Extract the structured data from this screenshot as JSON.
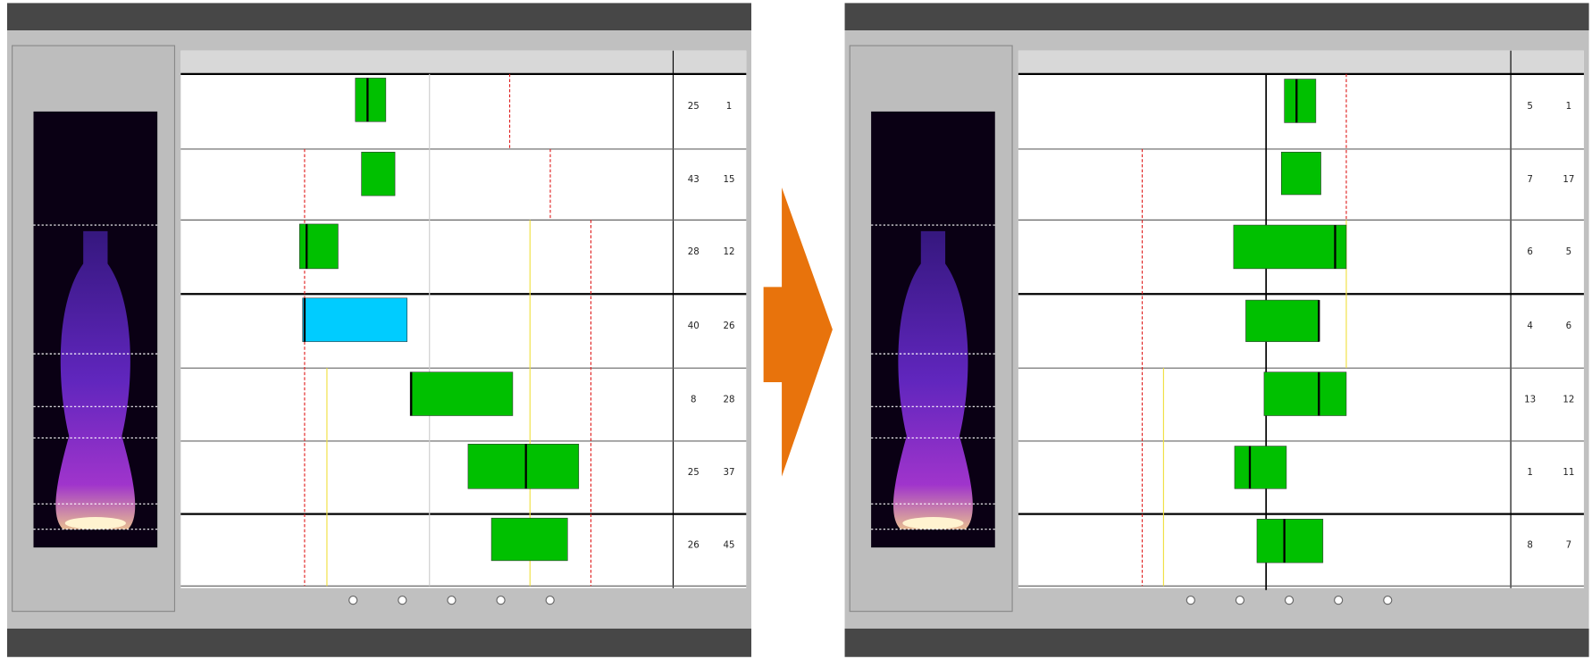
{
  "before": {
    "rows": [
      [
        "25",
        "1"
      ],
      [
        "43",
        "15"
      ],
      [
        "28",
        "12"
      ],
      [
        "40",
        "26"
      ],
      [
        "8",
        "28"
      ],
      [
        "25",
        "37"
      ],
      [
        "26",
        "45"
      ]
    ]
  },
  "after": {
    "rows": [
      [
        "5",
        "1"
      ],
      [
        "7",
        "17"
      ],
      [
        "6",
        "5"
      ],
      [
        "4",
        "6"
      ],
      [
        "13",
        "12"
      ],
      [
        "1",
        "11"
      ],
      [
        "8",
        "7"
      ]
    ]
  }
}
